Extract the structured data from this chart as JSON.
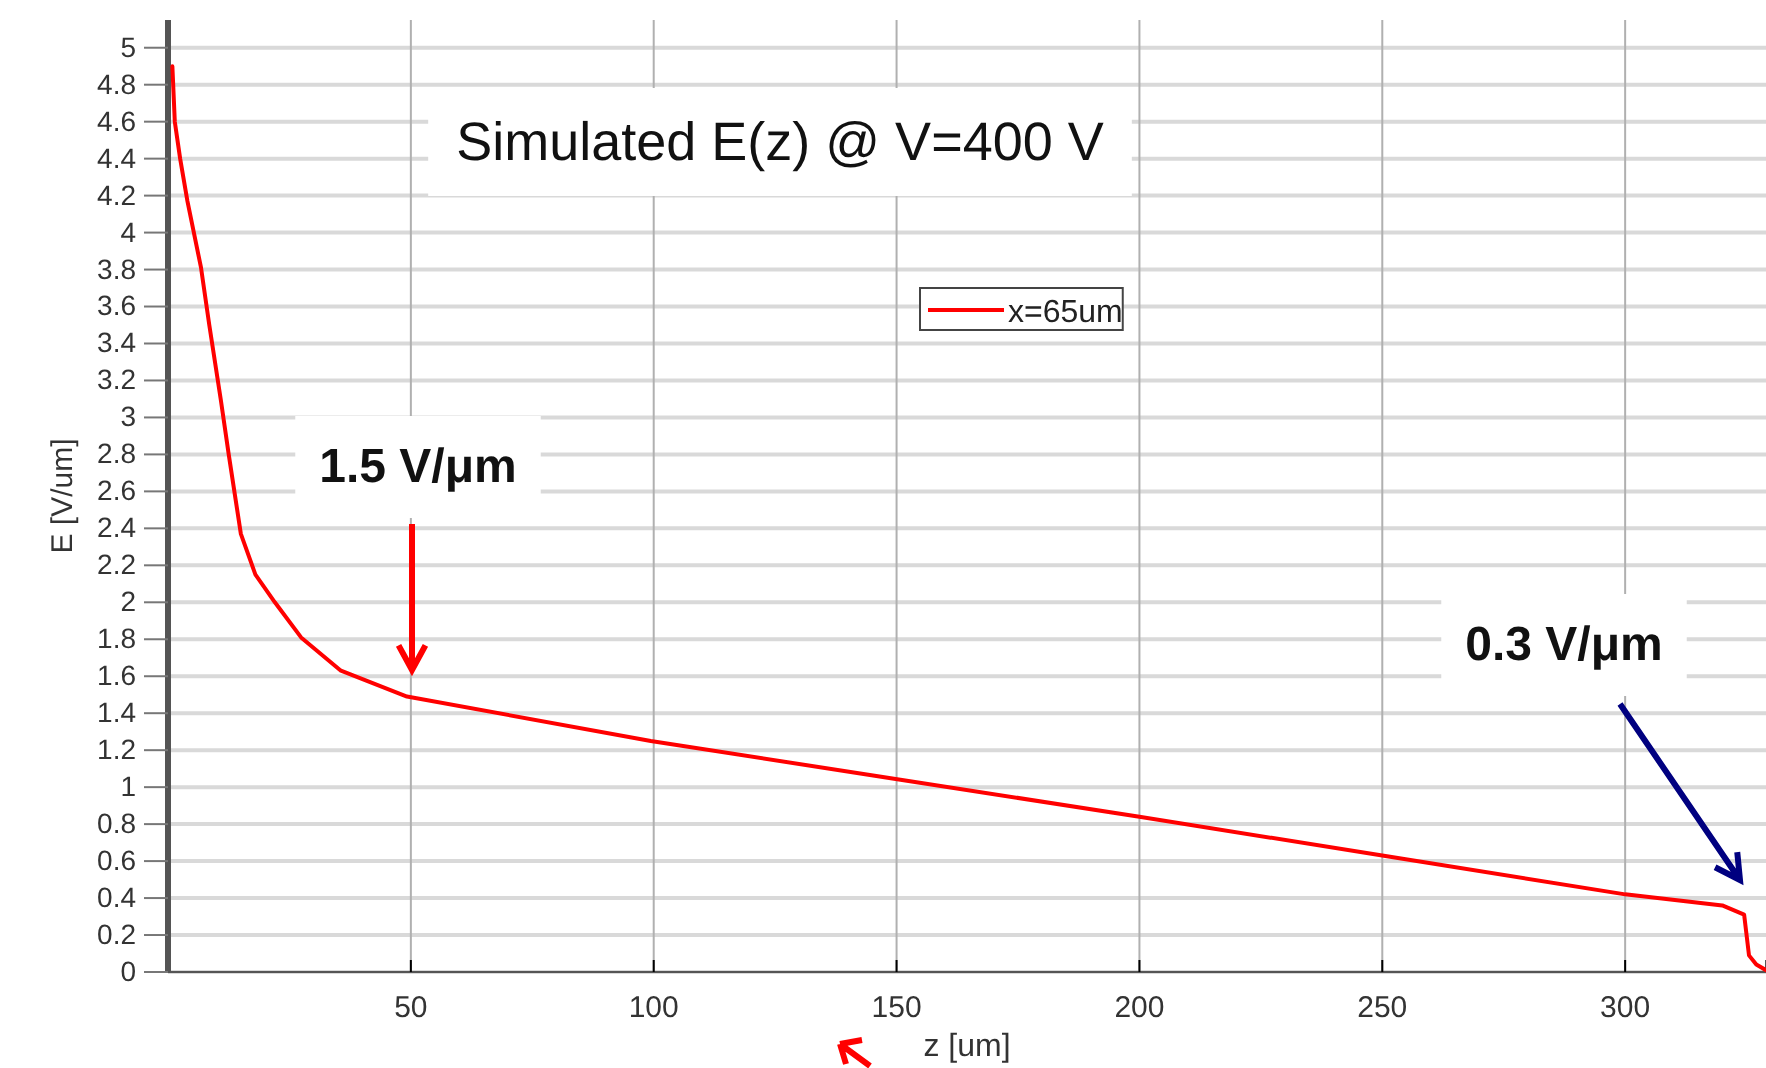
{
  "chart_data": {
    "type": "line",
    "title": "Simulated E(z) @ V=400 V",
    "xlabel": "z [um]",
    "ylabel": "E [V/um]",
    "xlim": [
      0,
      329
    ],
    "ylim": [
      0,
      5.15
    ],
    "xticks": [
      50,
      100,
      150,
      200,
      250,
      300
    ],
    "yticks": [
      0,
      0.2,
      0.4,
      0.6,
      0.8,
      1,
      1.2,
      1.4,
      1.6,
      1.8,
      2,
      2.2,
      2.4,
      2.6,
      2.8,
      3,
      3.2,
      3.4,
      3.6,
      3.8,
      4,
      4.2,
      4.4,
      4.6,
      4.8,
      5
    ],
    "grid": true,
    "legend": "top",
    "line_style": "solid",
    "series": [
      {
        "name": "x=65um",
        "color": "#ff0000",
        "x": [
          0.9,
          1.4,
          2.5,
          4,
          6.8,
          8.5,
          10.9,
          12.5,
          15,
          18,
          22,
          27.4,
          35.6,
          49.2,
          99.4,
          150.8,
          200,
          250,
          300,
          320,
          324.5,
          325.5,
          327,
          329
        ],
        "values": [
          4.9,
          4.6,
          4.4,
          4.17,
          3.81,
          3.5,
          3.09,
          2.8,
          2.37,
          2.15,
          2,
          1.81,
          1.63,
          1.49,
          1.25,
          1.04,
          0.84,
          0.63,
          0.42,
          0.36,
          0.31,
          0.09,
          0.04,
          0.01
        ]
      }
    ],
    "annotations": [
      "1.5 V/μm",
      "0.3 V/μm"
    ]
  }
}
